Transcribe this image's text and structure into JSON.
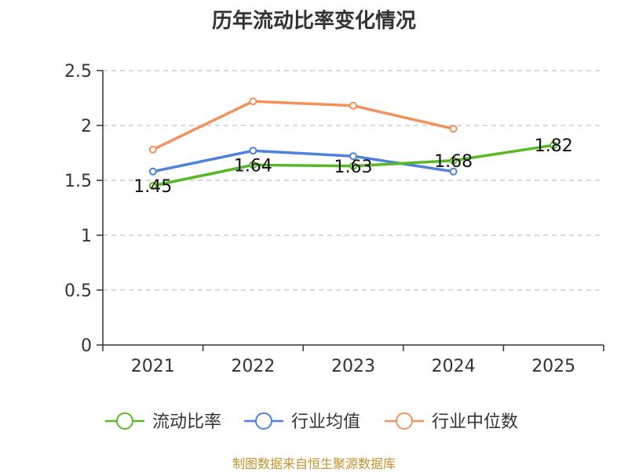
{
  "chart_data": {
    "type": "line",
    "title": "历年流动比率变化情况",
    "categories": [
      "2021",
      "2022",
      "2023",
      "2024",
      "2025"
    ],
    "ylim": [
      0,
      2.5
    ],
    "yticks": [
      0,
      0.5,
      1,
      1.5,
      2,
      2.5
    ],
    "ytick_labels": [
      "0",
      "0.5",
      "1",
      "1.5",
      "2",
      "2.5"
    ],
    "grid": true,
    "legend_position": "bottom",
    "series": [
      {
        "name": "流动比率",
        "color": "#58b825",
        "values": [
          1.45,
          1.64,
          1.63,
          1.68,
          1.82
        ],
        "labels": [
          "1.45",
          "1.64",
          "1.63",
          "1.68",
          "1.82"
        ]
      },
      {
        "name": "行业均值",
        "color": "#4e80e0",
        "values": [
          1.58,
          1.77,
          1.72,
          1.58,
          null
        ]
      },
      {
        "name": "行业中位数",
        "color": "#f5905a",
        "values": [
          1.78,
          2.22,
          2.18,
          1.97,
          null
        ]
      }
    ]
  },
  "source": "制图数据来自恒生聚源数据库"
}
